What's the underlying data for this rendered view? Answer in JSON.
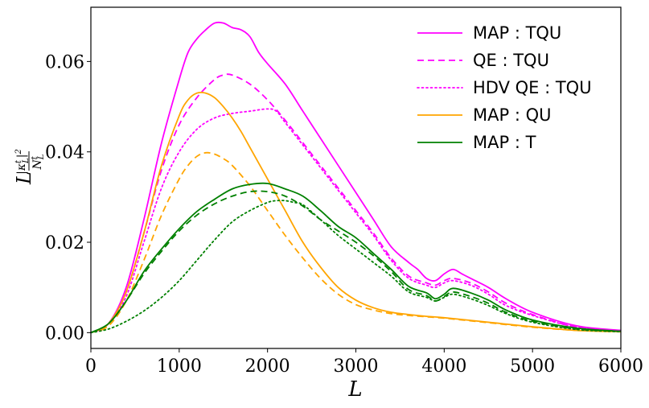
{
  "chart_data": {
    "type": "line",
    "title": "",
    "xlabel": "L",
    "ylabel": "L|κ_L^t|²/N_L^t",
    "xlim": [
      0,
      6000
    ],
    "ylim": [
      -0.0035,
      0.072
    ],
    "x_ticks": [
      0,
      1000,
      2000,
      3000,
      4000,
      5000,
      6000
    ],
    "x_tick_labels": [
      "0",
      "1000",
      "2000",
      "3000",
      "4000",
      "5000",
      "6000"
    ],
    "y_ticks": [
      0.0,
      0.02,
      0.04,
      0.06
    ],
    "y_tick_labels": [
      "0.00",
      "0.02",
      "0.04",
      "0.06"
    ],
    "grid": false,
    "legend_placement": "top-right",
    "legend": [
      {
        "label": "MAP : TQU",
        "color": "#ff00ff",
        "dash": "solid"
      },
      {
        "label": "QE : TQU",
        "color": "#ff00ff",
        "dash": "dashed"
      },
      {
        "label": "HDV QE : TQU",
        "color": "#ff00ff",
        "dash": "dotted"
      },
      {
        "label": "MAP : QU",
        "color": "#ffa500",
        "dash": "solid"
      },
      {
        "label": "MAP : T",
        "color": "#008000",
        "dash": "solid"
      }
    ],
    "series": [
      {
        "name": "MAP : TQU",
        "color": "#ff00ff",
        "dash": "solid",
        "x": [
          0,
          200,
          400,
          600,
          800,
          1000,
          1100,
          1200,
          1300,
          1400,
          1500,
          1600,
          1700,
          1800,
          1900,
          2000,
          2200,
          2400,
          2600,
          2800,
          3000,
          3200,
          3400,
          3600,
          3700,
          3800,
          3900,
          4000,
          4100,
          4200,
          4300,
          4500,
          4700,
          5000,
          5500,
          6000
        ],
        "y": [
          0.0,
          0.002,
          0.01,
          0.025,
          0.042,
          0.056,
          0.062,
          0.065,
          0.067,
          0.0685,
          0.0685,
          0.0675,
          0.067,
          0.0655,
          0.062,
          0.0595,
          0.055,
          0.049,
          0.043,
          0.037,
          0.031,
          0.025,
          0.019,
          0.0155,
          0.014,
          0.012,
          0.0115,
          0.013,
          0.014,
          0.013,
          0.012,
          0.01,
          0.0075,
          0.0045,
          0.0015,
          0.0005
        ]
      },
      {
        "name": "QE : TQU",
        "color": "#ff00ff",
        "dash": "dashed",
        "x": [
          0,
          200,
          400,
          600,
          800,
          1000,
          1200,
          1400,
          1500,
          1600,
          1800,
          2000,
          2200,
          2400,
          2600,
          2800,
          3000,
          3200,
          3400,
          3600,
          3800,
          3900,
          4000,
          4100,
          4300,
          4500,
          4700,
          5000,
          5500,
          6000
        ],
        "y": [
          0.0,
          0.002,
          0.009,
          0.022,
          0.036,
          0.046,
          0.052,
          0.056,
          0.057,
          0.057,
          0.055,
          0.0515,
          0.047,
          0.042,
          0.037,
          0.032,
          0.027,
          0.022,
          0.0165,
          0.0125,
          0.011,
          0.0105,
          0.0115,
          0.012,
          0.011,
          0.009,
          0.0065,
          0.004,
          0.0012,
          0.0004
        ]
      },
      {
        "name": "HDV QE : TQU",
        "color": "#ff00ff",
        "dash": "dotted",
        "x": [
          0,
          200,
          400,
          600,
          800,
          1000,
          1200,
          1400,
          1600,
          1800,
          2000,
          2100,
          2200,
          2400,
          2600,
          2800,
          3000,
          3200,
          3400,
          3600,
          3800,
          3900,
          4000,
          4100,
          4300,
          4500,
          4700,
          5000,
          5500,
          6000
        ],
        "y": [
          0.0,
          0.002,
          0.008,
          0.02,
          0.032,
          0.04,
          0.045,
          0.0475,
          0.0485,
          0.049,
          0.0495,
          0.049,
          0.0465,
          0.0415,
          0.0365,
          0.0315,
          0.0265,
          0.0215,
          0.016,
          0.012,
          0.0105,
          0.01,
          0.011,
          0.0115,
          0.0105,
          0.0085,
          0.006,
          0.0038,
          0.0012,
          0.0004
        ]
      },
      {
        "name": "QE : QU",
        "color": "#ffa500",
        "dash": "dashed",
        "x": [
          0,
          200,
          400,
          600,
          800,
          1000,
          1100,
          1200,
          1300,
          1400,
          1500,
          1600,
          1800,
          2000,
          2200,
          2400,
          2600,
          2800,
          3000,
          3200,
          3400,
          3600,
          3800,
          4000,
          4500,
          5000,
          5500,
          6000
        ],
        "y": [
          0.0,
          0.0015,
          0.007,
          0.016,
          0.026,
          0.034,
          0.037,
          0.039,
          0.0398,
          0.0395,
          0.0385,
          0.037,
          0.0325,
          0.027,
          0.0215,
          0.0165,
          0.012,
          0.0085,
          0.0062,
          0.005,
          0.0042,
          0.0038,
          0.0035,
          0.0032,
          0.0022,
          0.0012,
          0.0005,
          0.0002
        ]
      },
      {
        "name": "MAP : QU",
        "color": "#ffa500",
        "dash": "solid",
        "x": [
          0,
          200,
          400,
          600,
          800,
          1000,
          1100,
          1200,
          1300,
          1400,
          1500,
          1600,
          1700,
          1800,
          2000,
          2200,
          2400,
          2600,
          2800,
          3000,
          3200,
          3400,
          3600,
          3800,
          4000,
          4500,
          5000,
          5500,
          6000
        ],
        "y": [
          0.0,
          0.002,
          0.009,
          0.022,
          0.037,
          0.048,
          0.0515,
          0.053,
          0.053,
          0.052,
          0.05,
          0.0475,
          0.0445,
          0.041,
          0.034,
          0.027,
          0.02,
          0.0145,
          0.01,
          0.0072,
          0.0055,
          0.0045,
          0.004,
          0.0036,
          0.0033,
          0.0023,
          0.0013,
          0.0005,
          0.0002
        ]
      },
      {
        "name": "QE : T",
        "color": "#008000",
        "dash": "dashed",
        "x": [
          0,
          200,
          400,
          600,
          800,
          1000,
          1200,
          1400,
          1600,
          1800,
          2000,
          2200,
          2400,
          2600,
          2800,
          3000,
          3200,
          3400,
          3600,
          3800,
          3900,
          4000,
          4100,
          4300,
          4500,
          4700,
          5000,
          5500,
          6000
        ],
        "y": [
          0.0,
          0.002,
          0.007,
          0.013,
          0.018,
          0.0225,
          0.026,
          0.0285,
          0.0302,
          0.0312,
          0.0312,
          0.0302,
          0.028,
          0.025,
          0.0225,
          0.02,
          0.017,
          0.0135,
          0.0095,
          0.0082,
          0.007,
          0.008,
          0.009,
          0.008,
          0.0065,
          0.0045,
          0.0025,
          0.0008,
          0.0003
        ]
      },
      {
        "name": "MAP : T",
        "color": "#008000",
        "dash": "solid",
        "x": [
          0,
          200,
          400,
          600,
          800,
          1000,
          1200,
          1400,
          1600,
          1800,
          2000,
          2200,
          2400,
          2600,
          2800,
          3000,
          3200,
          3400,
          3600,
          3800,
          3900,
          4000,
          4100,
          4300,
          4500,
          4700,
          5000,
          5500,
          6000
        ],
        "y": [
          0.0,
          0.002,
          0.007,
          0.0135,
          0.0185,
          0.023,
          0.0268,
          0.0295,
          0.0318,
          0.0328,
          0.033,
          0.0318,
          0.0302,
          0.027,
          0.0235,
          0.021,
          0.0175,
          0.014,
          0.0102,
          0.0088,
          0.0075,
          0.0085,
          0.0098,
          0.0088,
          0.0072,
          0.005,
          0.0028,
          0.001,
          0.0003
        ]
      },
      {
        "name": "HDV QE : T",
        "color": "#008000",
        "dash": "dotted",
        "x": [
          0,
          200,
          400,
          600,
          800,
          1000,
          1200,
          1400,
          1600,
          1800,
          2000,
          2100,
          2200,
          2300,
          2400,
          2600,
          2800,
          3000,
          3200,
          3400,
          3600,
          3800,
          3900,
          4000,
          4100,
          4300,
          4500,
          4700,
          5000,
          5500,
          6000
        ],
        "y": [
          0.0,
          0.0008,
          0.0025,
          0.0048,
          0.0078,
          0.0115,
          0.016,
          0.0205,
          0.0245,
          0.027,
          0.0288,
          0.0292,
          0.0292,
          0.0288,
          0.0283,
          0.025,
          0.0215,
          0.0185,
          0.0155,
          0.0125,
          0.009,
          0.0078,
          0.007,
          0.0078,
          0.0085,
          0.0075,
          0.006,
          0.0042,
          0.0023,
          0.0007,
          0.0002
        ]
      }
    ]
  }
}
